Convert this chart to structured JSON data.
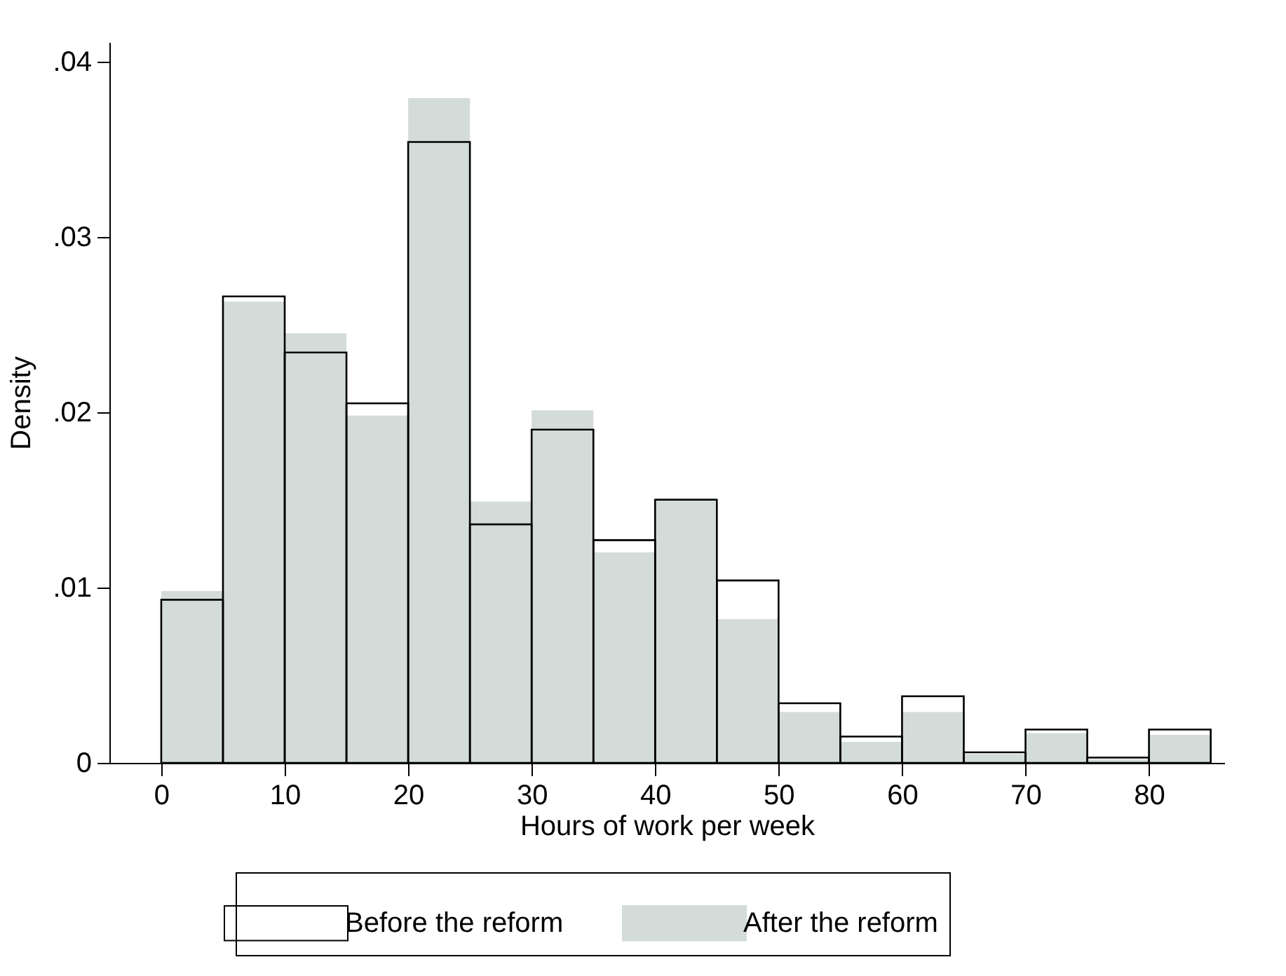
{
  "chart_data": {
    "type": "histogram",
    "xlabel": "Hours of work per week",
    "ylabel": "Density",
    "bins": [
      0,
      5,
      10,
      15,
      20,
      25,
      30,
      35,
      40,
      45,
      50,
      55,
      60,
      65,
      70,
      75,
      80,
      85
    ],
    "series": [
      {
        "name": "Before the reform",
        "color": "#000000",
        "values": [
          0.0093,
          0.0266,
          0.0234,
          0.0205,
          0.0354,
          0.0136,
          0.019,
          0.0127,
          0.015,
          0.0104,
          0.0034,
          0.0015,
          0.0038,
          0.0006,
          0.0019,
          0.0003,
          0.0019
        ]
      },
      {
        "name": "After the reform",
        "color": "#d3dcd8",
        "values": [
          0.0098,
          0.0263,
          0.0245,
          0.0198,
          0.0379,
          0.0149,
          0.0201,
          0.012,
          0.0151,
          0.0082,
          0.0029,
          0.0012,
          0.0029,
          0.0005,
          0.0017,
          0.0002,
          0.0016
        ]
      }
    ],
    "xlim": [
      -4.2,
      86.1
    ],
    "ylim": [
      0,
      0.0411
    ],
    "xticks": [
      0,
      10,
      20,
      30,
      40,
      50,
      60,
      70,
      80
    ],
    "yticks": [
      {
        "value": 0,
        "label": "0"
      },
      {
        "value": 0.01,
        "label": ".01"
      },
      {
        "value": 0.02,
        "label": ".02"
      },
      {
        "value": 0.03,
        "label": ".03"
      },
      {
        "value": 0.04,
        "label": ".04"
      }
    ],
    "grid": false,
    "legend": "bottom"
  }
}
